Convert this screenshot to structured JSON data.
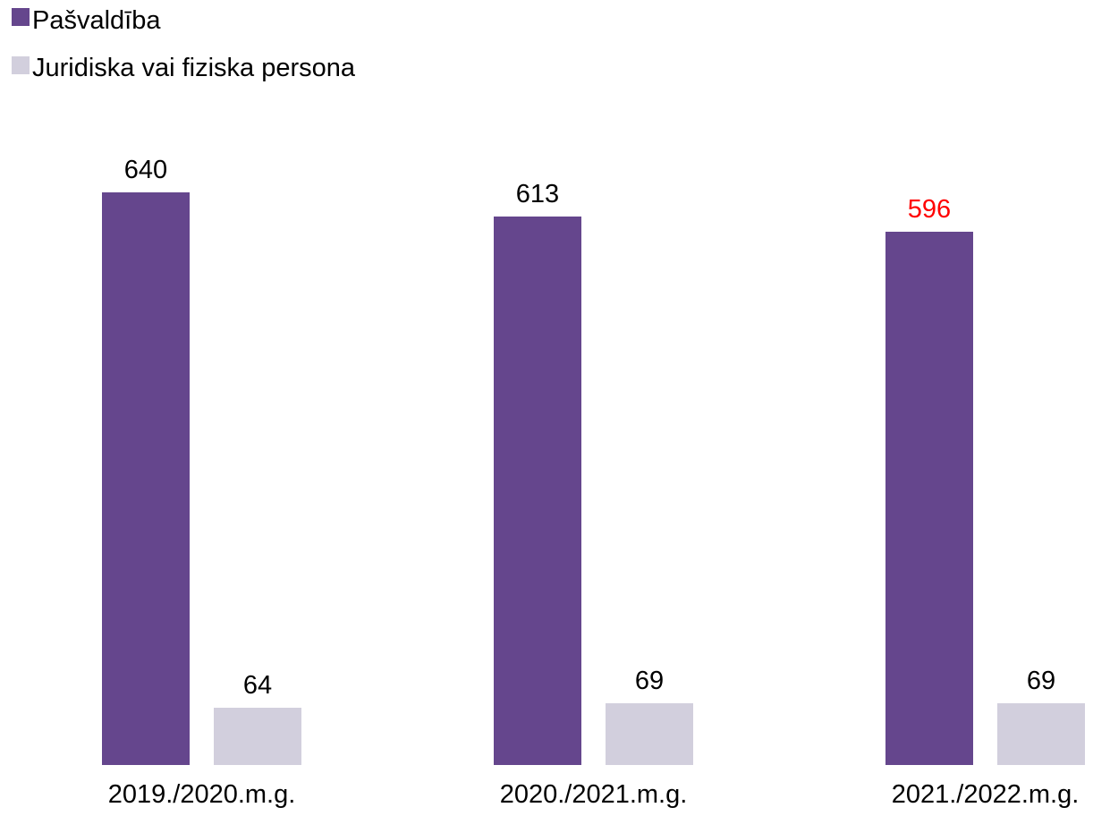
{
  "chart_data": {
    "type": "bar",
    "title": "",
    "xlabel": "",
    "ylabel": "",
    "ylim": [
      0,
      700
    ],
    "grid": false,
    "legend_placement": "top-left",
    "categories": [
      "2019./2020.m.g.",
      "2020./2021.m.g.",
      "2021./2022.m.g."
    ],
    "series": [
      {
        "name": "Pašvaldība",
        "color": "#65468d",
        "values": [
          640,
          613,
          596
        ],
        "label_colors": [
          "#000000",
          "#000000",
          "#ff0000"
        ]
      },
      {
        "name": "Juridiska vai fiziska persona",
        "color": "#d2cfdd",
        "values": [
          64,
          69,
          69
        ],
        "label_colors": [
          "#000000",
          "#000000",
          "#000000"
        ]
      }
    ]
  }
}
